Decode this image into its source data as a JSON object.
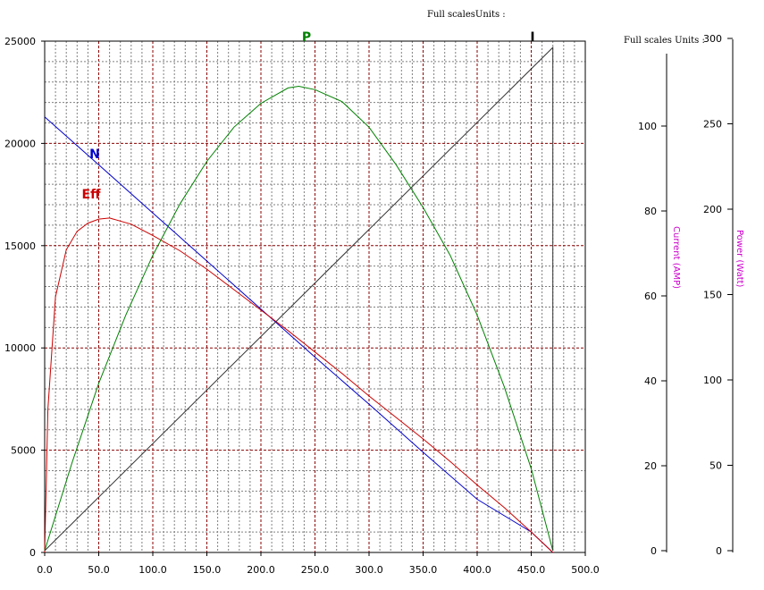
{
  "chart_data": {
    "type": "line",
    "header_left": "Full scalesUnits :",
    "header_right": "Full scales Units :",
    "x_axis": {
      "range": [
        0,
        500
      ],
      "ticks": [
        0,
        50,
        100,
        150,
        200,
        250,
        300,
        350,
        400,
        450,
        500
      ],
      "tick_labels": [
        "0.0",
        "50.0",
        "100.0",
        "150.0",
        "200.0",
        "250.0",
        "300.0",
        "350.0",
        "400.0",
        "450.0",
        "500.0"
      ]
    },
    "y_axis_left": {
      "range": [
        0,
        25000
      ],
      "ticks": [
        0,
        5000,
        10000,
        15000,
        20000,
        25000
      ],
      "tick_labels": [
        "0",
        "5000",
        "10000",
        "15000",
        "20000",
        "25000"
      ]
    },
    "y_axis_current": {
      "label": "Current (AMP)",
      "range": [
        0,
        120
      ],
      "ticks": [
        0,
        20,
        40,
        60,
        80,
        100
      ],
      "tick_labels": [
        "0",
        "20",
        "40",
        "60",
        "80",
        "100"
      ],
      "color": "#cc00cc"
    },
    "y_axis_power": {
      "label": "Power (Watt)",
      "range": [
        0,
        300
      ],
      "ticks": [
        0,
        50,
        100,
        150,
        200,
        250,
        300
      ],
      "tick_labels": [
        "0",
        "50",
        "100",
        "150",
        "200",
        "250",
        "300"
      ],
      "color": "#cc00cc"
    },
    "grid": true,
    "series": [
      {
        "name": "N",
        "color": "#0000cc",
        "axis": "left",
        "x": [
          0,
          50,
          100,
          150,
          200,
          250,
          300,
          350,
          400,
          450,
          470
        ],
        "y": [
          21300,
          18950,
          16600,
          14250,
          11900,
          9550,
          7250,
          4900,
          2600,
          1000,
          0
        ]
      },
      {
        "name": "Eff",
        "color": "#cc0000",
        "axis": "left",
        "x": [
          0,
          3,
          10,
          20,
          30,
          40,
          50,
          60,
          80,
          100,
          125,
          150,
          175,
          200,
          225,
          250,
          275,
          300,
          325,
          350,
          375,
          400,
          425,
          450,
          470
        ],
        "y": [
          0,
          7000,
          12500,
          14800,
          15700,
          16100,
          16300,
          16350,
          16050,
          15500,
          14750,
          13850,
          12850,
          11850,
          10850,
          9800,
          8750,
          7650,
          6600,
          5550,
          4450,
          3300,
          2200,
          1000,
          0
        ]
      },
      {
        "name": "P",
        "color": "#008000",
        "axis": "power",
        "x": [
          0,
          25,
          50,
          75,
          100,
          125,
          150,
          175,
          200,
          225,
          235,
          250,
          275,
          300,
          325,
          350,
          375,
          400,
          425,
          450,
          470
        ],
        "y": [
          0,
          51,
          98,
          138,
          173,
          203,
          228,
          248,
          262,
          271,
          272,
          270,
          263,
          248,
          226,
          201,
          173,
          138,
          96,
          48,
          0
        ]
      },
      {
        "name": "I",
        "color": "#333333",
        "axis": "current",
        "x": [
          0,
          470,
          470
        ],
        "y": [
          0,
          118.5,
          0
        ]
      }
    ]
  }
}
